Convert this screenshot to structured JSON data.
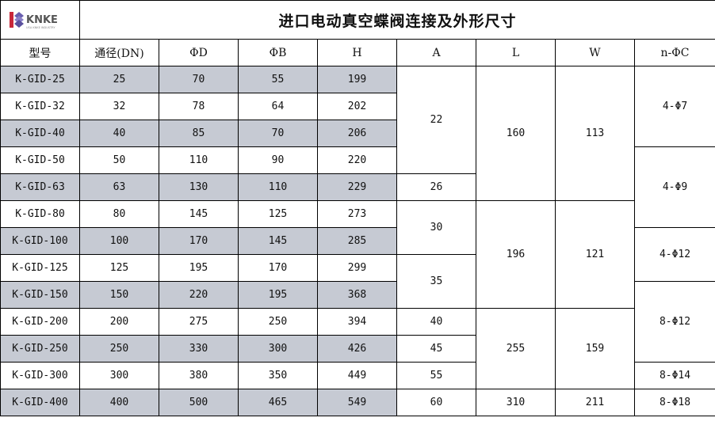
{
  "logo": {
    "text": "KNKE",
    "subtext": "USA KNKE INDUSTRY",
    "colors": {
      "red": "#c8273a",
      "purple": "#6a5fb0"
    }
  },
  "title": "进口电动真空蝶阀连接及外形尺寸",
  "headers": [
    "型号",
    "通径(DN)",
    "ΦD",
    "ΦB",
    "H",
    "A",
    "L",
    "W",
    "n-ΦC"
  ],
  "row_shading": "#c6cad3",
  "rows": [
    {
      "model": "K-GID-25",
      "dn": "25",
      "d": "70",
      "b": "55",
      "h": "199"
    },
    {
      "model": "K-GID-32",
      "dn": "32",
      "d": "78",
      "b": "64",
      "h": "202"
    },
    {
      "model": "K-GID-40",
      "dn": "40",
      "d": "85",
      "b": "70",
      "h": "206"
    },
    {
      "model": "K-GID-50",
      "dn": "50",
      "d": "110",
      "b": "90",
      "h": "220"
    },
    {
      "model": "K-GID-63",
      "dn": "63",
      "d": "130",
      "b": "110",
      "h": "229"
    },
    {
      "model": "K-GID-80",
      "dn": "80",
      "d": "145",
      "b": "125",
      "h": "273"
    },
    {
      "model": "K-GID-100",
      "dn": "100",
      "d": "170",
      "b": "145",
      "h": "285"
    },
    {
      "model": "K-GID-125",
      "dn": "125",
      "d": "195",
      "b": "170",
      "h": "299"
    },
    {
      "model": "K-GID-150",
      "dn": "150",
      "d": "220",
      "b": "195",
      "h": "368"
    },
    {
      "model": "K-GID-200",
      "dn": "200",
      "d": "275",
      "b": "250",
      "h": "394"
    },
    {
      "model": "K-GID-250",
      "dn": "250",
      "d": "330",
      "b": "300",
      "h": "426"
    },
    {
      "model": "K-GID-300",
      "dn": "300",
      "d": "380",
      "b": "350",
      "h": "449"
    },
    {
      "model": "K-GID-400",
      "dn": "400",
      "d": "500",
      "b": "465",
      "h": "549"
    }
  ],
  "merged_columns": {
    "a": [
      {
        "value": "22",
        "rows": 4
      },
      {
        "value": "26",
        "rows": 1
      },
      {
        "value": "30",
        "rows": 2
      },
      {
        "value": "35",
        "rows": 2
      },
      {
        "value": "40",
        "rows": 1
      },
      {
        "value": "45",
        "rows": 1
      },
      {
        "value": "55",
        "rows": 1
      },
      {
        "value": "60",
        "rows": 1
      }
    ],
    "l": [
      {
        "value": "160",
        "rows": 5
      },
      {
        "value": "196",
        "rows": 4
      },
      {
        "value": "255",
        "rows": 3
      },
      {
        "value": "310",
        "rows": 1
      }
    ],
    "w": [
      {
        "value": "113",
        "rows": 5
      },
      {
        "value": "121",
        "rows": 4
      },
      {
        "value": "159",
        "rows": 3
      },
      {
        "value": "211",
        "rows": 1
      }
    ],
    "c": [
      {
        "value": "4-Φ7",
        "rows": 3
      },
      {
        "value": "4-Φ9",
        "rows": 3
      },
      {
        "value": "4-Φ12",
        "rows": 2
      },
      {
        "value": "8-Φ12",
        "rows": 3
      },
      {
        "value": "8-Φ14",
        "rows": 1
      },
      {
        "value": "8-Φ18",
        "rows": 1
      }
    ]
  }
}
